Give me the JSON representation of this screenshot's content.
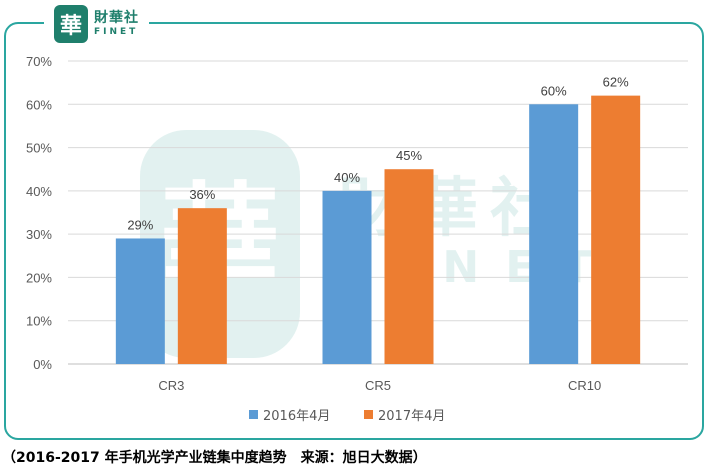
{
  "logo": {
    "seal_char": "華",
    "cn": "財華社",
    "en": "FINET"
  },
  "watermark": {
    "seal_char": "華",
    "cn": "財華社",
    "en": "FINET"
  },
  "caption": "（2016-2017 年手机光学产业链集中度趋势　来源：旭日大数据）",
  "chart_data": {
    "type": "bar",
    "categories": [
      "CR3",
      "CR5",
      "CR10"
    ],
    "series": [
      {
        "name": "2016年4月",
        "values": [
          29,
          40,
          60
        ],
        "labels": [
          "29%",
          "40%",
          "60%"
        ],
        "color": "#5b9bd5"
      },
      {
        "name": "2017年4月",
        "values": [
          36,
          45,
          62
        ],
        "labels": [
          "36%",
          "45%",
          "62%"
        ],
        "color": "#ed7d31"
      }
    ],
    "ylim": [
      0,
      70
    ],
    "yticks": [
      "0%",
      "10%",
      "20%",
      "30%",
      "40%",
      "50%",
      "60%",
      "70%"
    ],
    "grid": true,
    "legend": "bottom",
    "title": "",
    "xlabel": "",
    "ylabel": ""
  },
  "colors": {
    "frame": "#2aa6a0",
    "brand": "#1f7f6c",
    "grid": "#d9d9d9",
    "axis_text": "#595959"
  }
}
